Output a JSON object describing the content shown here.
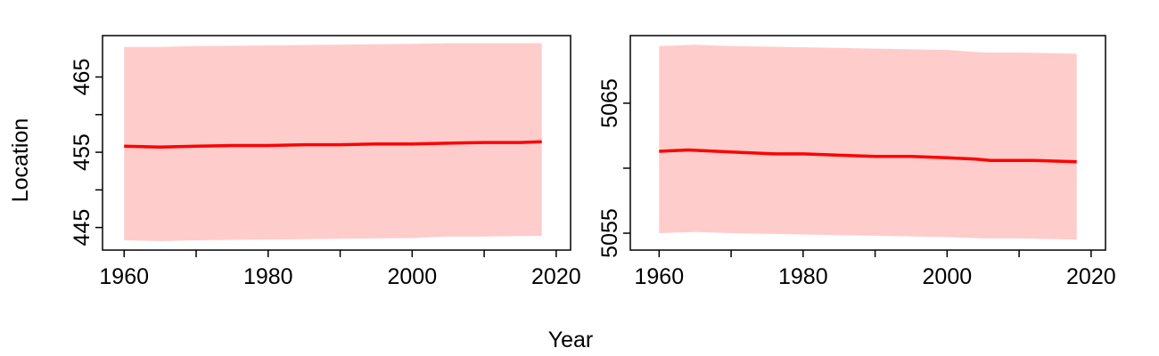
{
  "figure": {
    "xlabel": "Year",
    "ylabel": "Location"
  },
  "chart_data": [
    {
      "type": "line",
      "xlabel": "Year",
      "ylabel": "Location",
      "xlim": [
        1957,
        2022
      ],
      "ylim": [
        442.0,
        470.5
      ],
      "x_ticks": [
        1960,
        1970,
        1980,
        1990,
        2000,
        2010,
        2020
      ],
      "x_tick_labels": [
        "1960",
        "",
        "1980",
        "",
        "2000",
        "",
        "2020"
      ],
      "y_ticks": [
        445,
        450,
        455,
        460,
        465
      ],
      "y_tick_labels": [
        "445",
        "",
        "455",
        "",
        "465"
      ],
      "grid": false,
      "series": [
        {
          "role": "estimate",
          "color": "#ff0000",
          "x": [
            1960,
            1965,
            1970,
            1975,
            1980,
            1985,
            1990,
            1995,
            2000,
            2005,
            2010,
            2015,
            2018
          ],
          "y": [
            455.8,
            455.7,
            455.8,
            455.9,
            455.9,
            456.0,
            456.0,
            456.1,
            456.1,
            456.2,
            456.3,
            456.3,
            456.4
          ]
        },
        {
          "role": "interval",
          "color": "#ffcccc",
          "x": [
            1960,
            1965,
            1970,
            1980,
            1990,
            2000,
            2005,
            2010,
            2018
          ],
          "upper": [
            469.0,
            469.0,
            469.1,
            469.2,
            469.3,
            469.4,
            469.5,
            469.5,
            469.5
          ],
          "lower": [
            443.3,
            443.2,
            443.3,
            443.4,
            443.5,
            443.6,
            443.8,
            443.8,
            443.9
          ]
        }
      ]
    },
    {
      "type": "line",
      "xlabel": "Year",
      "ylabel": "Location",
      "xlim": [
        1956,
        2022
      ],
      "ylim": [
        5053.7,
        5070.2
      ],
      "x_ticks": [
        1960,
        1970,
        1980,
        1990,
        2000,
        2010,
        2020
      ],
      "x_tick_labels": [
        "1960",
        "",
        "1980",
        "",
        "2000",
        "",
        "2020"
      ],
      "y_ticks": [
        5055,
        5060,
        5065
      ],
      "y_tick_labels": [
        "5055",
        "",
        "5065"
      ],
      "grid": false,
      "series": [
        {
          "role": "estimate",
          "color": "#ff0000",
          "x": [
            1960,
            1964,
            1968,
            1972,
            1976,
            1980,
            1985,
            1990,
            1995,
            2000,
            2004,
            2006,
            2012,
            2018
          ],
          "y": [
            5061.3,
            5061.4,
            5061.3,
            5061.2,
            5061.1,
            5061.1,
            5061.0,
            5060.9,
            5060.9,
            5060.8,
            5060.7,
            5060.6,
            5060.6,
            5060.5
          ]
        },
        {
          "role": "interval",
          "color": "#ffcccc",
          "x": [
            1960,
            1965,
            1970,
            1980,
            1990,
            2000,
            2005,
            2010,
            2018
          ],
          "upper": [
            5069.4,
            5069.5,
            5069.4,
            5069.3,
            5069.2,
            5069.1,
            5068.9,
            5068.9,
            5068.8
          ],
          "lower": [
            5055.0,
            5055.1,
            5055.0,
            5054.9,
            5054.8,
            5054.7,
            5054.6,
            5054.6,
            5054.5
          ]
        }
      ]
    }
  ]
}
